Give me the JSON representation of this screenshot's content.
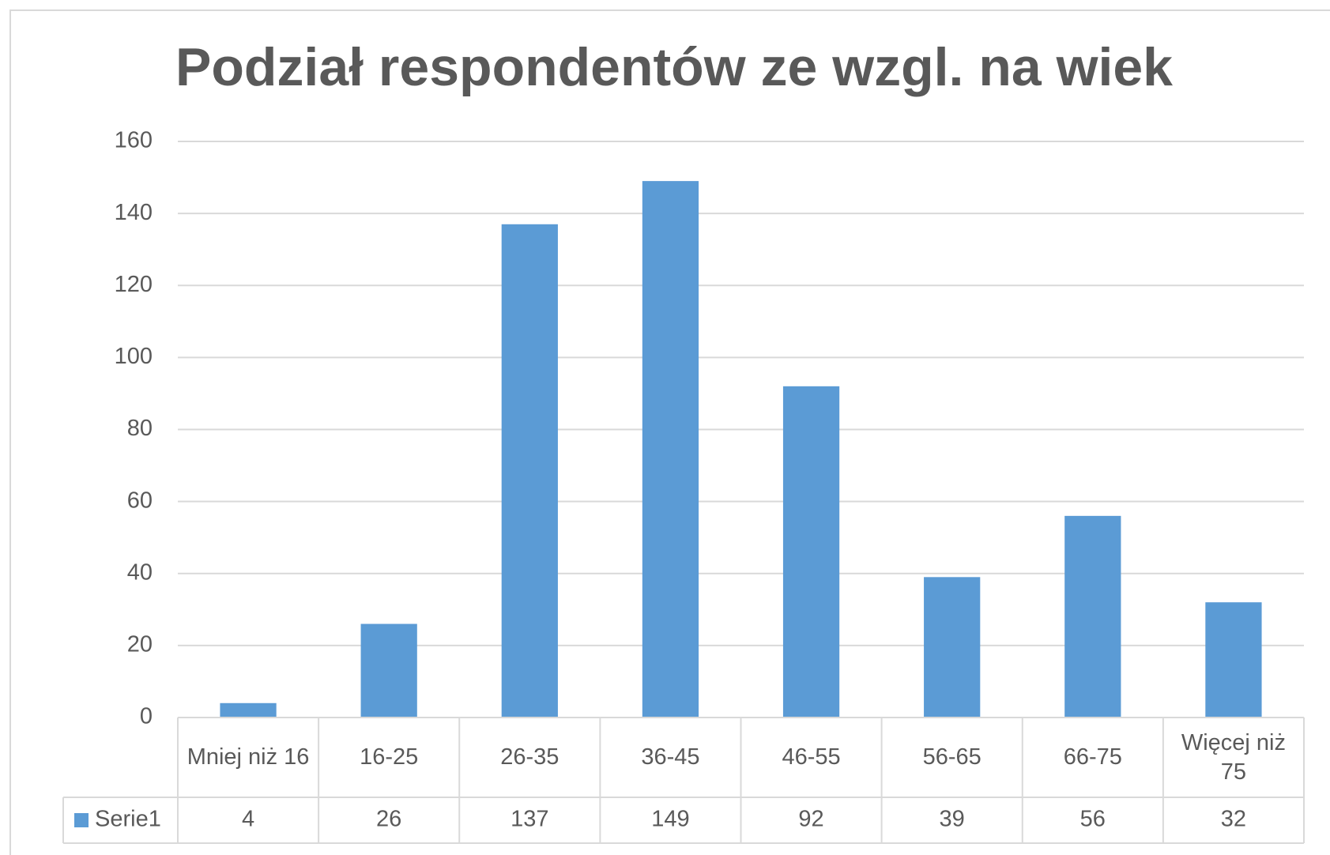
{
  "chart_data": {
    "type": "bar",
    "title": "Podział respondentów ze wzgl. na wiek",
    "categories": [
      "Mniej niż 16",
      "16-25",
      "26-35",
      "36-45",
      "46-55",
      "56-65",
      "66-75",
      "Więcej niż 75"
    ],
    "series": [
      {
        "name": "Serie1",
        "color": "#5b9bd5",
        "values": [
          4,
          26,
          137,
          149,
          92,
          39,
          56,
          32
        ]
      }
    ],
    "ylim": [
      0,
      160
    ],
    "yticks": [
      0,
      20,
      40,
      60,
      80,
      100,
      120,
      140,
      160
    ],
    "grid": true,
    "data_table": true
  }
}
